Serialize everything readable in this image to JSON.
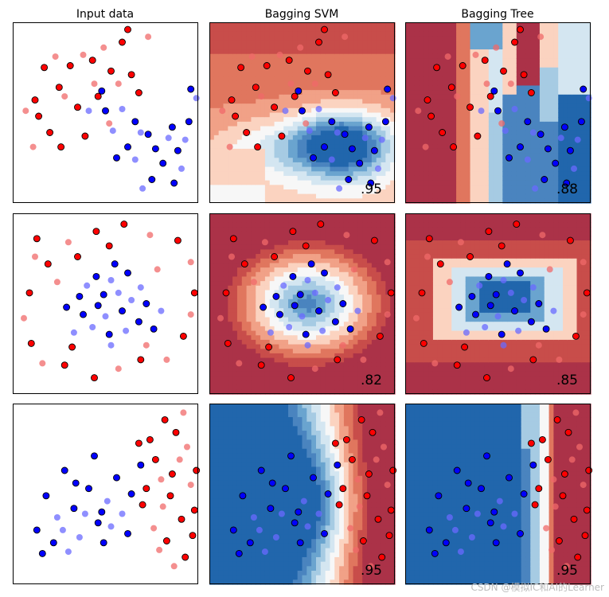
{
  "figure": {
    "column_titles": [
      "Input data",
      "Bagging SVM",
      "Bagging Tree"
    ],
    "watermark": "CSDN @模拟IC和AI的Learner"
  },
  "colors": {
    "red_point": "#ff0000",
    "blue_point": "#0000ff",
    "light_red_point": "#f06a6a",
    "light_blue_point": "#6a6aff",
    "cmap": [
      "#2166ac",
      "#4a84bf",
      "#6aa4cf",
      "#a6cbe3",
      "#d4e6f1",
      "#f7f7f7",
      "#fbd3c0",
      "#f1a187",
      "#e0765e",
      "#c84d4a",
      "#ab3248"
    ]
  },
  "chart_data": [
    {
      "type": "scatter",
      "dataset": "moons",
      "row": 0,
      "scores": {
        "svm": ".95",
        "tree": ".88"
      },
      "xlim": [
        0,
        10
      ],
      "ylim": [
        0,
        10
      ],
      "points": [
        {
          "x": 1.2,
          "y": 5.7,
          "c": 1,
          "t": 1
        },
        {
          "x": 1.7,
          "y": 7.5,
          "c": 1,
          "t": 1
        },
        {
          "x": 2.3,
          "y": 8.1,
          "c": 1,
          "t": 0
        },
        {
          "x": 2.5,
          "y": 6.4,
          "c": 1,
          "t": 1
        },
        {
          "x": 3.1,
          "y": 7.6,
          "c": 1,
          "t": 1
        },
        {
          "x": 3.8,
          "y": 8.2,
          "c": 1,
          "t": 0
        },
        {
          "x": 4.3,
          "y": 7.9,
          "c": 1,
          "t": 1
        },
        {
          "x": 4.9,
          "y": 8.6,
          "c": 1,
          "t": 0
        },
        {
          "x": 5.3,
          "y": 7.3,
          "c": 1,
          "t": 1
        },
        {
          "x": 5.9,
          "y": 8.9,
          "c": 1,
          "t": 1
        },
        {
          "x": 6.4,
          "y": 7.1,
          "c": 1,
          "t": 1
        },
        {
          "x": 7.3,
          "y": 9.2,
          "c": 1,
          "t": 0
        },
        {
          "x": 0.7,
          "y": 5.1,
          "c": 1,
          "t": 0
        },
        {
          "x": 1.4,
          "y": 4.8,
          "c": 1,
          "t": 1
        },
        {
          "x": 2.8,
          "y": 5.9,
          "c": 1,
          "t": 0
        },
        {
          "x": 3.5,
          "y": 5.3,
          "c": 1,
          "t": 1
        },
        {
          "x": 4.6,
          "y": 5.9,
          "c": 1,
          "t": 1
        },
        {
          "x": 5.7,
          "y": 6.6,
          "c": 1,
          "t": 0
        },
        {
          "x": 6.8,
          "y": 6.1,
          "c": 1,
          "t": 1
        },
        {
          "x": 2.0,
          "y": 3.9,
          "c": 1,
          "t": 1
        },
        {
          "x": 2.6,
          "y": 3.1,
          "c": 1,
          "t": 1
        },
        {
          "x": 1.1,
          "y": 3.1,
          "c": 1,
          "t": 0
        },
        {
          "x": 3.9,
          "y": 3.7,
          "c": 1,
          "t": 1
        },
        {
          "x": 4.4,
          "y": 6.6,
          "c": 1,
          "t": 0
        },
        {
          "x": 6.2,
          "y": 9.6,
          "c": 1,
          "t": 1
        },
        {
          "x": 5.2,
          "y": 4.4,
          "c": 1,
          "t": 0
        },
        {
          "x": 5.0,
          "y": 5.1,
          "c": 0,
          "t": 1
        },
        {
          "x": 5.9,
          "y": 5.2,
          "c": 0,
          "t": 0
        },
        {
          "x": 6.6,
          "y": 4.5,
          "c": 0,
          "t": 1
        },
        {
          "x": 7.3,
          "y": 3.8,
          "c": 0,
          "t": 1
        },
        {
          "x": 7.7,
          "y": 3.0,
          "c": 0,
          "t": 1
        },
        {
          "x": 8.4,
          "y": 3.6,
          "c": 0,
          "t": 0
        },
        {
          "x": 8.1,
          "y": 2.2,
          "c": 0,
          "t": 1
        },
        {
          "x": 8.9,
          "y": 2.9,
          "c": 0,
          "t": 1
        },
        {
          "x": 9.3,
          "y": 3.5,
          "c": 0,
          "t": 0
        },
        {
          "x": 9.5,
          "y": 4.5,
          "c": 0,
          "t": 1
        },
        {
          "x": 9.1,
          "y": 1.9,
          "c": 0,
          "t": 0
        },
        {
          "x": 7.5,
          "y": 1.3,
          "c": 0,
          "t": 1
        },
        {
          "x": 6.6,
          "y": 2.4,
          "c": 0,
          "t": 0
        },
        {
          "x": 6.2,
          "y": 3.1,
          "c": 0,
          "t": 1
        },
        {
          "x": 5.4,
          "y": 4.0,
          "c": 0,
          "t": 0
        },
        {
          "x": 4.8,
          "y": 6.2,
          "c": 0,
          "t": 1
        },
        {
          "x": 9.9,
          "y": 5.8,
          "c": 0,
          "t": 0
        },
        {
          "x": 9.6,
          "y": 6.3,
          "c": 0,
          "t": 1
        },
        {
          "x": 4.1,
          "y": 5.1,
          "c": 0,
          "t": 0
        },
        {
          "x": 8.7,
          "y": 1.1,
          "c": 0,
          "t": 1
        },
        {
          "x": 7.0,
          "y": 0.8,
          "c": 0,
          "t": 0
        },
        {
          "x": 5.6,
          "y": 2.5,
          "c": 0,
          "t": 1
        },
        {
          "x": 6.9,
          "y": 3.9,
          "c": 0,
          "t": 0
        },
        {
          "x": 8.6,
          "y": 4.2,
          "c": 0,
          "t": 1
        }
      ]
    },
    {
      "type": "scatter",
      "dataset": "circles",
      "row": 1,
      "scores": {
        "svm": ".82",
        "tree": ".85"
      },
      "xlim": [
        0,
        10
      ],
      "ylim": [
        0,
        10
      ],
      "points": [
        {
          "x": 1.3,
          "y": 8.6,
          "c": 1,
          "t": 1
        },
        {
          "x": 3.0,
          "y": 8.4,
          "c": 1,
          "t": 0
        },
        {
          "x": 4.5,
          "y": 9.0,
          "c": 1,
          "t": 1
        },
        {
          "x": 6.0,
          "y": 9.4,
          "c": 1,
          "t": 1
        },
        {
          "x": 7.4,
          "y": 8.8,
          "c": 1,
          "t": 0
        },
        {
          "x": 8.9,
          "y": 8.5,
          "c": 1,
          "t": 1
        },
        {
          "x": 9.6,
          "y": 7.3,
          "c": 1,
          "t": 0
        },
        {
          "x": 1.2,
          "y": 7.6,
          "c": 1,
          "t": 0
        },
        {
          "x": 1.9,
          "y": 7.2,
          "c": 1,
          "t": 1
        },
        {
          "x": 0.9,
          "y": 5.6,
          "c": 1,
          "t": 1
        },
        {
          "x": 0.6,
          "y": 4.2,
          "c": 1,
          "t": 0
        },
        {
          "x": 1.0,
          "y": 2.8,
          "c": 1,
          "t": 1
        },
        {
          "x": 1.6,
          "y": 1.7,
          "c": 1,
          "t": 0
        },
        {
          "x": 2.8,
          "y": 1.6,
          "c": 1,
          "t": 1
        },
        {
          "x": 4.4,
          "y": 0.9,
          "c": 1,
          "t": 1
        },
        {
          "x": 5.7,
          "y": 1.4,
          "c": 1,
          "t": 0
        },
        {
          "x": 6.9,
          "y": 1.9,
          "c": 1,
          "t": 1
        },
        {
          "x": 8.3,
          "y": 1.9,
          "c": 1,
          "t": 0
        },
        {
          "x": 9.2,
          "y": 3.2,
          "c": 1,
          "t": 1
        },
        {
          "x": 9.6,
          "y": 4.4,
          "c": 1,
          "t": 0
        },
        {
          "x": 9.8,
          "y": 5.6,
          "c": 1,
          "t": 1
        },
        {
          "x": 2.4,
          "y": 6.2,
          "c": 1,
          "t": 0
        },
        {
          "x": 3.5,
          "y": 7.6,
          "c": 1,
          "t": 1
        },
        {
          "x": 7.8,
          "y": 6.9,
          "c": 1,
          "t": 0
        },
        {
          "x": 3.2,
          "y": 2.6,
          "c": 1,
          "t": 1
        },
        {
          "x": 7.2,
          "y": 2.7,
          "c": 1,
          "t": 0
        },
        {
          "x": 5.2,
          "y": 8.2,
          "c": 1,
          "t": 1
        },
        {
          "x": 4.5,
          "y": 6.5,
          "c": 0,
          "t": 1
        },
        {
          "x": 5.3,
          "y": 6.3,
          "c": 0,
          "t": 0
        },
        {
          "x": 6.2,
          "y": 6.7,
          "c": 0,
          "t": 1
        },
        {
          "x": 6.9,
          "y": 5.9,
          "c": 0,
          "t": 0
        },
        {
          "x": 7.2,
          "y": 5.0,
          "c": 0,
          "t": 1
        },
        {
          "x": 6.8,
          "y": 4.0,
          "c": 0,
          "t": 1
        },
        {
          "x": 6.1,
          "y": 3.5,
          "c": 0,
          "t": 0
        },
        {
          "x": 5.2,
          "y": 3.3,
          "c": 0,
          "t": 1
        },
        {
          "x": 4.3,
          "y": 3.7,
          "c": 0,
          "t": 0
        },
        {
          "x": 3.8,
          "y": 4.4,
          "c": 0,
          "t": 1
        },
        {
          "x": 3.6,
          "y": 5.4,
          "c": 0,
          "t": 1
        },
        {
          "x": 4.0,
          "y": 6.0,
          "c": 0,
          "t": 0
        },
        {
          "x": 4.9,
          "y": 5.5,
          "c": 0,
          "t": 1
        },
        {
          "x": 5.7,
          "y": 5.6,
          "c": 0,
          "t": 0
        },
        {
          "x": 5.9,
          "y": 4.6,
          "c": 0,
          "t": 1
        },
        {
          "x": 5.0,
          "y": 4.3,
          "c": 0,
          "t": 0
        },
        {
          "x": 4.6,
          "y": 4.9,
          "c": 0,
          "t": 1
        },
        {
          "x": 6.4,
          "y": 5.2,
          "c": 0,
          "t": 0
        },
        {
          "x": 2.9,
          "y": 4.8,
          "c": 0,
          "t": 1
        },
        {
          "x": 8.0,
          "y": 4.6,
          "c": 0,
          "t": 0
        },
        {
          "x": 5.5,
          "y": 7.2,
          "c": 0,
          "t": 1
        },
        {
          "x": 5.3,
          "y": 2.7,
          "c": 0,
          "t": 0
        },
        {
          "x": 7.6,
          "y": 3.6,
          "c": 0,
          "t": 1
        },
        {
          "x": 3.3,
          "y": 3.4,
          "c": 0,
          "t": 0
        }
      ]
    },
    {
      "type": "scatter",
      "dataset": "linear",
      "row": 2,
      "scores": {
        "svm": ".95",
        "tree": ".95"
      },
      "xlim": [
        0,
        10
      ],
      "ylim": [
        0,
        10
      ],
      "points": [
        {
          "x": 1.3,
          "y": 3.0,
          "c": 0,
          "t": 1
        },
        {
          "x": 1.8,
          "y": 4.9,
          "c": 0,
          "t": 1
        },
        {
          "x": 2.4,
          "y": 3.7,
          "c": 0,
          "t": 0
        },
        {
          "x": 2.8,
          "y": 6.3,
          "c": 0,
          "t": 1
        },
        {
          "x": 3.3,
          "y": 4.2,
          "c": 0,
          "t": 1
        },
        {
          "x": 3.6,
          "y": 2.6,
          "c": 0,
          "t": 0
        },
        {
          "x": 4.1,
          "y": 5.3,
          "c": 0,
          "t": 1
        },
        {
          "x": 4.6,
          "y": 3.4,
          "c": 0,
          "t": 1
        },
        {
          "x": 5.1,
          "y": 4.6,
          "c": 0,
          "t": 0
        },
        {
          "x": 5.6,
          "y": 5.9,
          "c": 0,
          "t": 1
        },
        {
          "x": 4.9,
          "y": 2.3,
          "c": 0,
          "t": 1
        },
        {
          "x": 3.0,
          "y": 1.8,
          "c": 0,
          "t": 0
        },
        {
          "x": 2.2,
          "y": 2.3,
          "c": 0,
          "t": 1
        },
        {
          "x": 4.4,
          "y": 7.1,
          "c": 0,
          "t": 1
        },
        {
          "x": 5.9,
          "y": 3.9,
          "c": 0,
          "t": 0
        },
        {
          "x": 6.4,
          "y": 5.0,
          "c": 0,
          "t": 1
        },
        {
          "x": 6.9,
          "y": 6.6,
          "c": 0,
          "t": 1
        },
        {
          "x": 3.9,
          "y": 3.9,
          "c": 0,
          "t": 0
        },
        {
          "x": 4.8,
          "y": 4.0,
          "c": 0,
          "t": 1
        },
        {
          "x": 3.4,
          "y": 5.6,
          "c": 0,
          "t": 1
        },
        {
          "x": 2.7,
          "y": 3.0,
          "c": 0,
          "t": 0
        },
        {
          "x": 6.2,
          "y": 2.8,
          "c": 0,
          "t": 1
        },
        {
          "x": 5.3,
          "y": 3.2,
          "c": 0,
          "t": 0
        },
        {
          "x": 1.6,
          "y": 1.7,
          "c": 0,
          "t": 1
        },
        {
          "x": 7.2,
          "y": 5.3,
          "c": 1,
          "t": 1
        },
        {
          "x": 7.7,
          "y": 6.9,
          "c": 1,
          "t": 1
        },
        {
          "x": 8.1,
          "y": 4.3,
          "c": 1,
          "t": 0
        },
        {
          "x": 8.6,
          "y": 6.1,
          "c": 1,
          "t": 1
        },
        {
          "x": 9.1,
          "y": 3.6,
          "c": 1,
          "t": 1
        },
        {
          "x": 9.6,
          "y": 5.5,
          "c": 1,
          "t": 0
        },
        {
          "x": 8.3,
          "y": 2.4,
          "c": 1,
          "t": 1
        },
        {
          "x": 9.3,
          "y": 1.5,
          "c": 1,
          "t": 1
        },
        {
          "x": 7.6,
          "y": 3.1,
          "c": 1,
          "t": 0
        },
        {
          "x": 8.8,
          "y": 8.4,
          "c": 1,
          "t": 1
        },
        {
          "x": 9.4,
          "y": 7.6,
          "c": 1,
          "t": 0
        },
        {
          "x": 8.2,
          "y": 9.1,
          "c": 1,
          "t": 1
        },
        {
          "x": 9.7,
          "y": 2.7,
          "c": 1,
          "t": 1
        },
        {
          "x": 7.9,
          "y": 1.9,
          "c": 1,
          "t": 0
        },
        {
          "x": 8.5,
          "y": 4.9,
          "c": 1,
          "t": 1
        },
        {
          "x": 9.0,
          "y": 6.9,
          "c": 1,
          "t": 0
        },
        {
          "x": 7.4,
          "y": 8.0,
          "c": 1,
          "t": 1
        },
        {
          "x": 9.8,
          "y": 4.1,
          "c": 1,
          "t": 1
        },
        {
          "x": 8.7,
          "y": 1.0,
          "c": 1,
          "t": 0
        },
        {
          "x": 6.8,
          "y": 7.8,
          "c": 1,
          "t": 1
        },
        {
          "x": 9.2,
          "y": 9.5,
          "c": 1,
          "t": 0
        },
        {
          "x": 7.0,
          "y": 4.4,
          "c": 1,
          "t": 1
        },
        {
          "x": 8.0,
          "y": 5.8,
          "c": 1,
          "t": 0
        },
        {
          "x": 9.9,
          "y": 6.3,
          "c": 1,
          "t": 1
        }
      ]
    }
  ]
}
